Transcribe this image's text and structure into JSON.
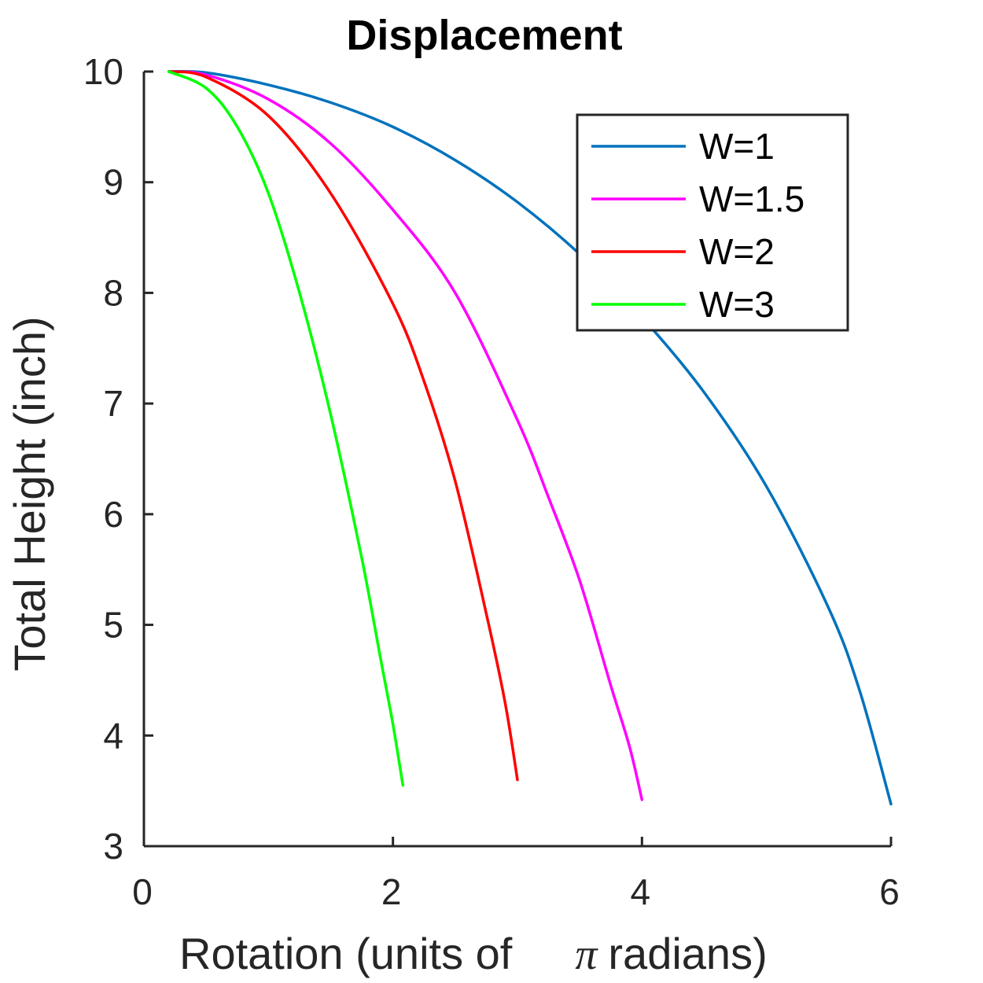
{
  "chart_data": {
    "type": "line",
    "title": "Displacement",
    "xlabel_parts": [
      "Rotation (units of",
      "π",
      "radians)"
    ],
    "ylabel": "Total Height (inch)",
    "xlim": [
      0,
      6
    ],
    "ylim": [
      3,
      10
    ],
    "xticks": [
      0,
      2,
      4,
      6
    ],
    "yticks": [
      3,
      4,
      5,
      6,
      7,
      8,
      9,
      10
    ],
    "grid": false,
    "legend_position": "top-right",
    "series": [
      {
        "name": "W=1",
        "color": "#0072BD",
        "x": [
          0.2,
          0.5,
          1.0,
          1.5,
          2.0,
          2.5,
          3.0,
          3.5,
          4.0,
          4.5,
          5.0,
          5.5,
          5.75,
          6.0
        ],
        "y": [
          10.0,
          9.99,
          9.88,
          9.72,
          9.5,
          9.2,
          8.82,
          8.35,
          7.78,
          7.1,
          6.25,
          5.15,
          4.4,
          3.38
        ]
      },
      {
        "name": "W=1.5",
        "color": "#FF00FF",
        "x": [
          0.2,
          0.5,
          1.0,
          1.5,
          2.0,
          2.5,
          3.0,
          3.25,
          3.5,
          3.75,
          3.9,
          4.0
        ],
        "y": [
          10.0,
          9.97,
          9.75,
          9.35,
          8.75,
          8.0,
          6.85,
          6.15,
          5.4,
          4.45,
          3.9,
          3.42
        ]
      },
      {
        "name": "W=2",
        "color": "#FF0000",
        "x": [
          0.2,
          0.5,
          1.0,
          1.5,
          2.0,
          2.25,
          2.5,
          2.75,
          2.9,
          3.0
        ],
        "y": [
          10.0,
          9.95,
          9.6,
          8.9,
          7.9,
          7.2,
          6.3,
          5.1,
          4.3,
          3.6
        ]
      },
      {
        "name": "W=3",
        "color": "#00FF00",
        "x": [
          0.2,
          0.5,
          0.75,
          1.0,
          1.25,
          1.5,
          1.75,
          1.9,
          2.0,
          2.08
        ],
        "y": [
          10.0,
          9.85,
          9.5,
          8.9,
          8.0,
          6.9,
          5.6,
          4.7,
          4.1,
          3.55
        ]
      }
    ]
  }
}
